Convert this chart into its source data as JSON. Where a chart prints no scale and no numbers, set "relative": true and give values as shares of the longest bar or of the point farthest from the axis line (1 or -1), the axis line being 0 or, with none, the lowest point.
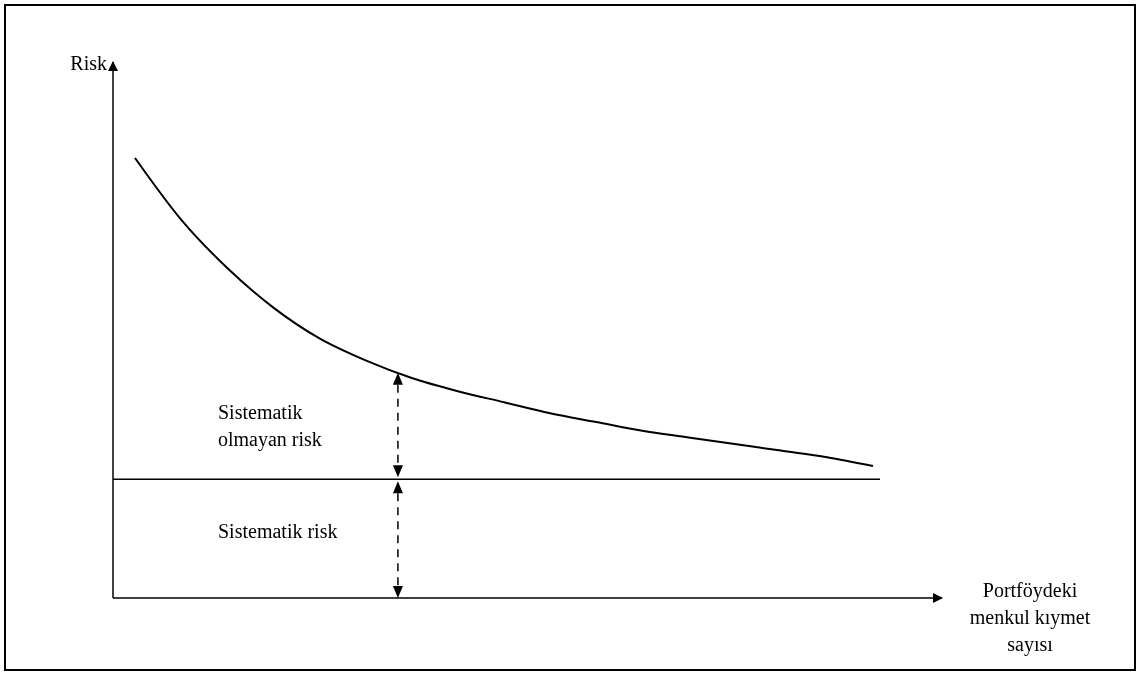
{
  "chart_data": {
    "type": "line",
    "relative": true,
    "xlabel": "Portföydeki menkul kıymet sayısı",
    "ylabel": "Risk",
    "categories": [
      null,
      null,
      null,
      null,
      null,
      null,
      null,
      null,
      null,
      null,
      null,
      null,
      null,
      null,
      null,
      null,
      null
    ],
    "series": [
      {
        "color": "#000000",
        "values": [
          1.0,
          0.86,
          0.75,
          0.66,
          0.59,
          0.54,
          0.5,
          0.47,
          0.445,
          0.42,
          0.4,
          0.38,
          0.365,
          0.35,
          0.335,
          0.32,
          0.3
        ]
      }
    ],
    "ref_lines": [
      {
        "axis": "y",
        "value": 0.27,
        "color": "#000000"
      }
    ],
    "annotations": [
      "Sistematik olmayan risk",
      "Sistematik risk"
    ],
    "grid": false
  }
}
